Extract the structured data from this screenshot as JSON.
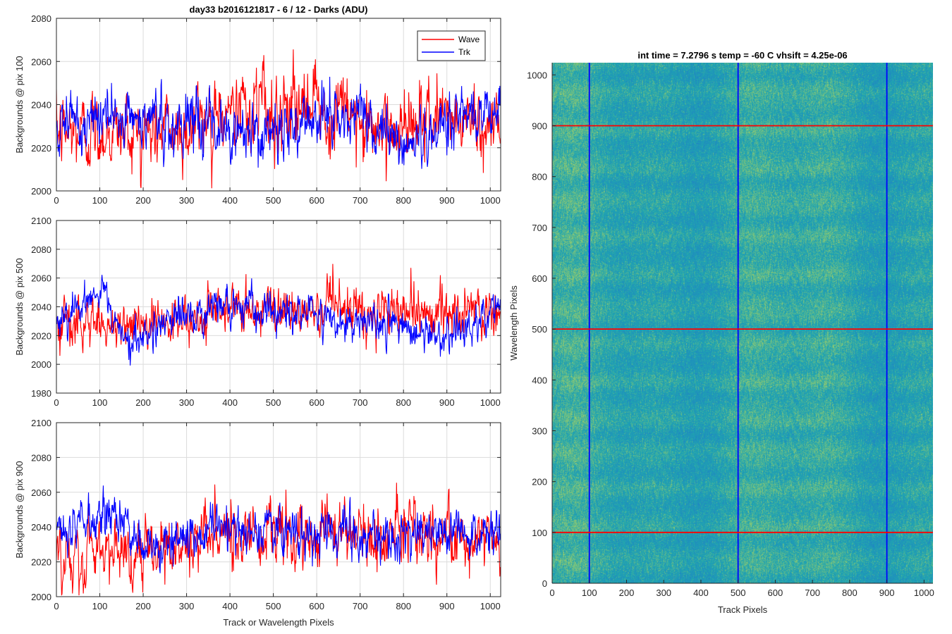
{
  "figure_title": "day33 b2016121817 - 6 / 12 - Darks (ADU)",
  "colors": {
    "wave": "#ff0000",
    "trk": "#0000ff",
    "grid": "#dcdcdc",
    "axis": "#262626",
    "heatmap_base": "#1fa5b0",
    "heatmap_high": "#b8d65a",
    "heatmap_low": "#1f6fd0"
  },
  "chart_data": [
    {
      "type": "line",
      "title": "day33 b2016121817 - 6 / 12 - Darks (ADU)",
      "xlabel": "",
      "ylabel": "Backgrounds @ pix 100",
      "xlim": [
        0,
        1024
      ],
      "ylim": [
        2000,
        2080
      ],
      "xticks": [
        0,
        100,
        200,
        300,
        400,
        500,
        600,
        700,
        800,
        900,
        1000
      ],
      "yticks": [
        2000,
        2020,
        2040,
        2060,
        2080
      ],
      "grid": true,
      "legend": "top-right",
      "series": [
        {
          "name": "Wave",
          "color": "#ff0000",
          "mean": 2030,
          "sigma": 9,
          "n_points": 1024,
          "mean_profile": [
            [
              0,
              2027
            ],
            [
              300,
              2028
            ],
            [
              380,
              2040
            ],
            [
              520,
              2040
            ],
            [
              650,
              2036
            ],
            [
              720,
              2032
            ],
            [
              1024,
              2032
            ]
          ]
        },
        {
          "name": "Trk",
          "color": "#0000ff",
          "mean": 2030,
          "sigma": 7,
          "n_points": 1024,
          "mean_profile": [
            [
              0,
              2028
            ],
            [
              100,
              2035
            ],
            [
              300,
              2030
            ],
            [
              480,
              2026
            ],
            [
              700,
              2038
            ],
            [
              800,
              2020
            ],
            [
              900,
              2032
            ],
            [
              1024,
              2040
            ]
          ]
        }
      ]
    },
    {
      "type": "line",
      "title": "",
      "xlabel": "",
      "ylabel": "Backgrounds @ pix 500",
      "xlim": [
        0,
        1024
      ],
      "ylim": [
        1980,
        2100
      ],
      "xticks": [
        0,
        100,
        200,
        300,
        400,
        500,
        600,
        700,
        800,
        900,
        1000
      ],
      "yticks": [
        1980,
        2000,
        2020,
        2040,
        2060,
        2080,
        2100
      ],
      "grid": true,
      "series": [
        {
          "name": "Wave",
          "color": "#ff0000",
          "mean": 2033,
          "sigma": 9,
          "n_points": 1024,
          "mean_profile": [
            [
              0,
              2028
            ],
            [
              300,
              2030
            ],
            [
              400,
              2038
            ],
            [
              700,
              2036
            ],
            [
              1024,
              2035
            ]
          ]
        },
        {
          "name": "Trk",
          "color": "#0000ff",
          "mean": 2030,
          "sigma": 7,
          "n_points": 1024,
          "mean_profile": [
            [
              0,
              2030
            ],
            [
              100,
              2052
            ],
            [
              140,
              2030
            ],
            [
              180,
              2012
            ],
            [
              250,
              2030
            ],
            [
              380,
              2040
            ],
            [
              700,
              2030
            ],
            [
              900,
              2020
            ],
            [
              1024,
              2035
            ]
          ]
        }
      ]
    },
    {
      "type": "line",
      "title": "",
      "xlabel": "Track or Wavelength Pixels",
      "ylabel": "Backgrounds @ pix 900",
      "xlim": [
        0,
        1024
      ],
      "ylim": [
        2000,
        2100
      ],
      "xticks": [
        0,
        100,
        200,
        300,
        400,
        500,
        600,
        700,
        800,
        900,
        1000
      ],
      "yticks": [
        2000,
        2020,
        2040,
        2060,
        2080,
        2100
      ],
      "grid": true,
      "series": [
        {
          "name": "Wave",
          "color": "#ff0000",
          "mean": 2030,
          "sigma": 10,
          "n_points": 1024,
          "mean_profile": [
            [
              0,
              2020
            ],
            [
              300,
              2030
            ],
            [
              400,
              2036
            ],
            [
              700,
              2034
            ],
            [
              1024,
              2034
            ]
          ]
        },
        {
          "name": "Trk",
          "color": "#0000ff",
          "mean": 2036,
          "sigma": 7,
          "n_points": 1024,
          "mean_profile": [
            [
              0,
              2040
            ],
            [
              120,
              2048
            ],
            [
              200,
              2028
            ],
            [
              400,
              2040
            ],
            [
              600,
              2036
            ],
            [
              1024,
              2036
            ]
          ]
        }
      ]
    },
    {
      "type": "heatmap",
      "title": "int time = 7.2796 s    temp = -60 C    vhsift = 4.25e-06",
      "xlabel": "Track Pixels",
      "ylabel": "Wavelength Pixels",
      "xlim": [
        0,
        1024
      ],
      "ylim": [
        0,
        1024
      ],
      "xticks": [
        0,
        100,
        200,
        300,
        400,
        500,
        600,
        700,
        800,
        900,
        1000
      ],
      "yticks": [
        0,
        100,
        200,
        300,
        400,
        500,
        600,
        700,
        800,
        900,
        1000
      ],
      "vertical_lines": {
        "color": "#0000ff",
        "x": [
          100,
          500,
          900
        ]
      },
      "horizontal_lines": {
        "color": "#ff0000",
        "y": [
          100,
          500,
          900
        ]
      }
    }
  ]
}
